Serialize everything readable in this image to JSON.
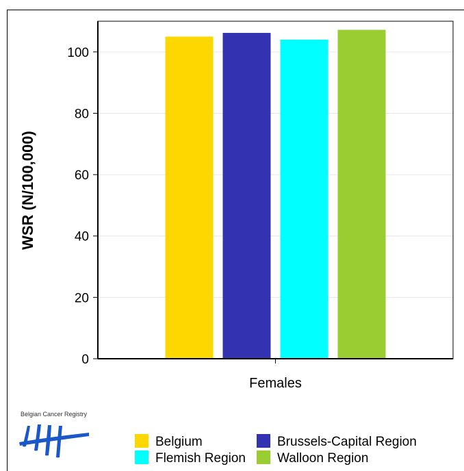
{
  "chart_data": {
    "type": "bar",
    "categories": [
      "Females"
    ],
    "series": [
      {
        "name": "Belgium",
        "values": [
          105.0
        ],
        "color": "#FFD700"
      },
      {
        "name": "Brussels-Capital Region",
        "values": [
          106.2
        ],
        "color": "#3333B2"
      },
      {
        "name": "Flemish Region",
        "values": [
          104.0
        ],
        "color": "#00FFFF"
      },
      {
        "name": "Walloon Region",
        "values": [
          107.2
        ],
        "color": "#9ACD32"
      }
    ],
    "title": "",
    "xlabel": "",
    "ylabel": "WSR (N/100,000)",
    "ylim": [
      0,
      110
    ],
    "yticks": [
      0,
      20,
      40,
      60,
      80,
      100
    ],
    "grid": true,
    "legend_position": "bottom"
  },
  "logo": {
    "text": "Belgian Cancer Registry"
  }
}
